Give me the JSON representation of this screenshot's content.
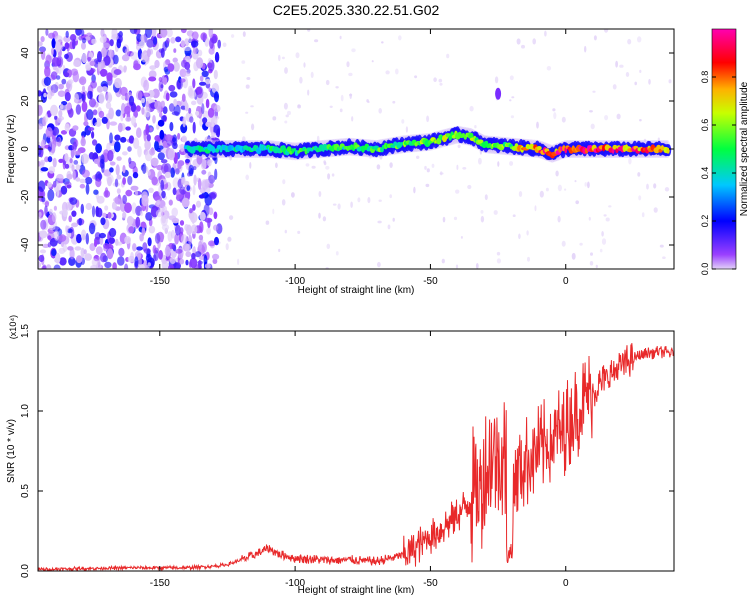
{
  "title": "C2E5.2025.330.22.51.G02",
  "chart_data": [
    {
      "type": "heatmap",
      "title": "C2E5.2025.330.22.51.G02",
      "xlabel": "Height of straight line (km)",
      "ylabel": "Frequency (Hz)",
      "xlim": [
        -195,
        40
      ],
      "ylim": [
        -50,
        50
      ],
      "x_ticks": [
        -150,
        -100,
        -50,
        0
      ],
      "y_ticks": [
        -40,
        -20,
        0,
        20,
        40
      ],
      "colorbar": {
        "label": "Normalized spectral amplitude",
        "range": [
          0.0,
          1.0
        ],
        "ticks": [
          0.0,
          0.2,
          0.4,
          0.6,
          0.8
        ],
        "colors": [
          "#cfb6f4",
          "#8000ff",
          "#0000ff",
          "#00ffff",
          "#00ff00",
          "#ffff00",
          "#ff8000",
          "#ff0000",
          "#ff00c0"
        ]
      },
      "noise_region_x": [
        -195,
        -128
      ],
      "ridge": [
        {
          "x": -140,
          "freq": 0,
          "amp": 0.45
        },
        {
          "x": -125,
          "freq": 0,
          "amp": 0.4
        },
        {
          "x": -110,
          "freq": 0,
          "amp": 0.45
        },
        {
          "x": -100,
          "freq": -1,
          "amp": 0.5
        },
        {
          "x": -90,
          "freq": 0,
          "amp": 0.5
        },
        {
          "x": -80,
          "freq": 1,
          "amp": 0.5
        },
        {
          "x": -70,
          "freq": 0,
          "amp": 0.55
        },
        {
          "x": -60,
          "freq": 2,
          "amp": 0.55
        },
        {
          "x": -50,
          "freq": 3,
          "amp": 0.6
        },
        {
          "x": -40,
          "freq": 6,
          "amp": 0.6
        },
        {
          "x": -35,
          "freq": 5,
          "amp": 0.6
        },
        {
          "x": -30,
          "freq": 2,
          "amp": 0.55
        },
        {
          "x": -20,
          "freq": 1,
          "amp": 0.6
        },
        {
          "x": -10,
          "freq": 0,
          "amp": 0.9
        },
        {
          "x": -5,
          "freq": -2,
          "amp": 0.85
        },
        {
          "x": 0,
          "freq": 0,
          "amp": 0.95
        },
        {
          "x": 20,
          "freq": 0,
          "amp": 0.9
        },
        {
          "x": 38,
          "freq": 0,
          "amp": 0.75
        }
      ]
    },
    {
      "type": "line",
      "xlabel": "Height of straight line (km)",
      "ylabel": "SNR (10 * v/v)",
      "y_multiplier": "(x10⁴)",
      "xlim": [
        -195,
        40
      ],
      "ylim": [
        0.0,
        1.5
      ],
      "x_ticks": [
        -150,
        -100,
        -50,
        0
      ],
      "y_ticks": [
        "0.0",
        "0.5",
        "1.0",
        "1.5"
      ],
      "color": "#e8292a",
      "series": [
        {
          "x": [
            -195,
            -180,
            -160,
            -140,
            -130,
            -125,
            -120,
            -115,
            -110,
            -105,
            -100,
            -90,
            -80,
            -70,
            -60,
            -55,
            -50,
            -45,
            -40,
            -35,
            -30,
            -26,
            -22,
            -20,
            -18,
            -15,
            -10,
            -5,
            0,
            5,
            10,
            15,
            20,
            25,
            30,
            35,
            40
          ],
          "y": [
            0.01,
            0.015,
            0.02,
            0.02,
            0.03,
            0.04,
            0.07,
            0.1,
            0.14,
            0.1,
            0.08,
            0.07,
            0.07,
            0.06,
            0.1,
            0.15,
            0.22,
            0.28,
            0.35,
            0.45,
            0.6,
            0.75,
            0.7,
            0.6,
            0.62,
            0.68,
            0.75,
            0.82,
            0.9,
            1.02,
            1.12,
            1.2,
            1.28,
            1.33,
            1.36,
            1.37,
            1.36
          ]
        }
      ]
    }
  ]
}
